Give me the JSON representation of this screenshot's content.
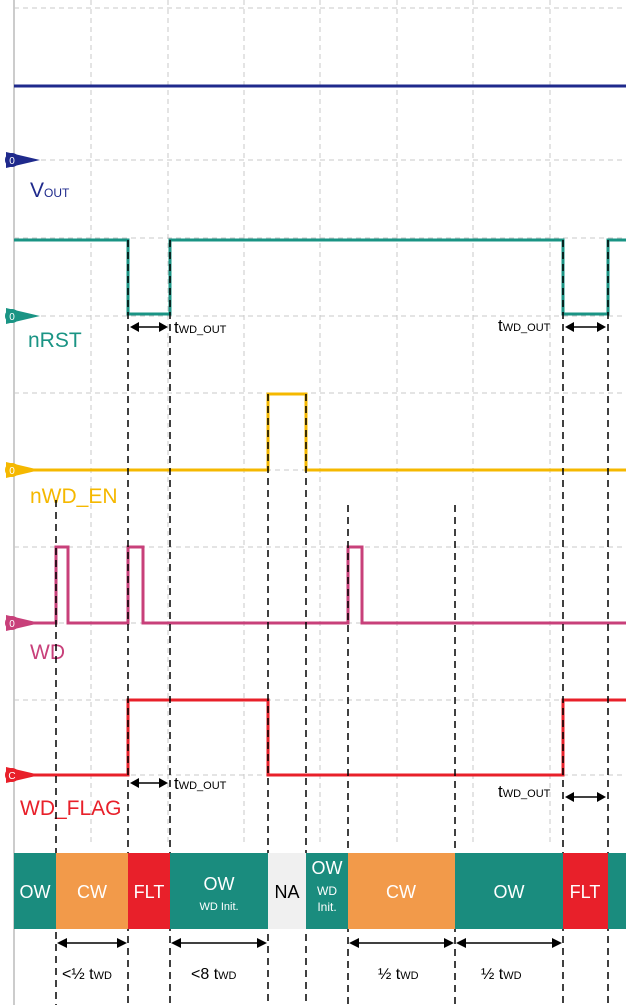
{
  "signals": {
    "vout": {
      "main": "V",
      "sub": "OUT",
      "marker": "0",
      "color": "#1f2a8c"
    },
    "nrst": {
      "label": "nRST",
      "marker": "0",
      "color": "#1a9484"
    },
    "nwd_en": {
      "label": "nWD_EN",
      "marker": "0",
      "color": "#f5b800"
    },
    "wd": {
      "label": "WD",
      "marker": "0",
      "color": "#c8407a"
    },
    "wd_flag": {
      "label": "WD_FLAG",
      "marker": "C",
      "color": "#e8202a"
    }
  },
  "annotations": {
    "t": "t",
    "wd_out": "WD_OUT"
  },
  "states": {
    "ow": "OW",
    "cw": "CW",
    "flt": "FLT",
    "na": "NA",
    "wd_init": "WD  Init.",
    "wd_init_short": "WD",
    "init_short": "Init."
  },
  "state_colors": {
    "ow": "#1a8c7e",
    "cw": "#f29a4a",
    "flt": "#e8202a",
    "na": "#f0f0f0"
  },
  "durations": {
    "half_lt": "<½ ",
    "lt8": "<8 ",
    "half": "½ ",
    "t": "t",
    "wd": "WD"
  }
}
